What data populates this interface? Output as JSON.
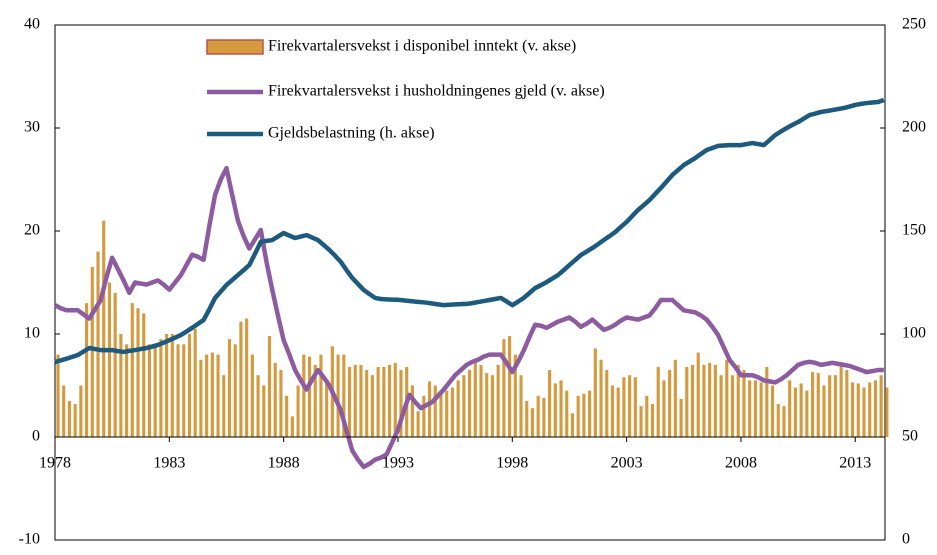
{
  "chart_data": {
    "type": "combo",
    "x": [
      1978,
      1978.25,
      1978.5,
      1978.75,
      1979,
      1979.25,
      1979.5,
      1979.75,
      1980,
      1980.25,
      1980.5,
      1980.75,
      1981,
      1981.25,
      1981.5,
      1981.75,
      1982,
      1982.25,
      1982.5,
      1982.75,
      1983,
      1983.25,
      1983.5,
      1983.75,
      1984,
      1984.25,
      1984.5,
      1984.75,
      1985,
      1985.25,
      1985.5,
      1985.75,
      1986,
      1986.25,
      1986.5,
      1986.75,
      1987,
      1987.25,
      1987.5,
      1987.75,
      1988,
      1988.25,
      1988.5,
      1988.75,
      1989,
      1989.25,
      1989.5,
      1989.75,
      1990,
      1990.25,
      1990.5,
      1990.75,
      1991,
      1991.25,
      1991.5,
      1991.75,
      1992,
      1992.25,
      1992.5,
      1992.75,
      1993,
      1993.25,
      1993.5,
      1993.75,
      1994,
      1994.25,
      1994.5,
      1994.75,
      1995,
      1995.25,
      1995.5,
      1995.75,
      1996,
      1996.25,
      1996.5,
      1996.75,
      1997,
      1997.25,
      1997.5,
      1997.75,
      1998,
      1998.25,
      1998.5,
      1998.75,
      1999,
      1999.25,
      1999.5,
      1999.75,
      2000,
      2000.25,
      2000.5,
      2000.75,
      2001,
      2001.25,
      2001.5,
      2001.75,
      2002,
      2002.25,
      2002.5,
      2002.75,
      2003,
      2003.25,
      2003.5,
      2003.75,
      2004,
      2004.25,
      2004.5,
      2004.75,
      2005,
      2005.25,
      2005.5,
      2005.75,
      2006,
      2006.25,
      2006.5,
      2006.75,
      2007,
      2007.25,
      2007.5,
      2007.75,
      2008,
      2008.25,
      2008.5,
      2008.75,
      2009,
      2009.25,
      2009.5,
      2009.75,
      2010,
      2010.25,
      2010.5,
      2010.75,
      2011,
      2011.25,
      2011.5,
      2011.75,
      2012,
      2012.25,
      2012.5,
      2012.75,
      2013,
      2013.25,
      2013.5,
      2013.75,
      2014,
      2014.25
    ],
    "series": [
      {
        "name": "Firekvartalersvekst i disponibel inntekt (v. akse)",
        "type": "bar",
        "axis": "y",
        "color": "#d69a3e",
        "values": [
          8,
          5,
          3.5,
          3.2,
          5,
          13,
          16.5,
          18,
          21,
          15,
          14,
          10,
          9,
          13,
          12.5,
          12,
          9,
          9,
          9.5,
          10,
          10,
          9,
          9,
          10,
          10.5,
          7.5,
          8,
          8.2,
          8,
          6,
          9.5,
          9,
          11.2,
          11.5,
          8,
          6,
          5,
          9.8,
          7.2,
          6.5,
          4,
          2,
          5,
          8,
          7.8,
          7,
          8,
          5.5,
          8.8,
          8,
          8,
          6.8,
          7,
          7,
          6.5,
          6,
          6.8,
          6.8,
          7,
          7.2,
          6.5,
          6.8,
          5,
          2.5,
          4,
          5.4,
          5,
          4.5,
          4.5,
          4.8,
          5.5,
          6,
          6.5,
          7.5,
          7,
          6.2,
          6,
          7,
          9.5,
          9.8,
          8,
          6,
          3.5,
          2.8,
          4,
          3.8,
          6.5,
          5.2,
          5.5,
          4.5,
          2.3,
          4,
          4.2,
          4.5,
          8.6,
          7.5,
          6.5,
          5,
          4.8,
          5.8,
          6,
          5.8,
          3,
          4,
          3.2,
          6.8,
          5.5,
          6.5,
          7.5,
          3.7,
          6.8,
          7,
          8.2,
          7,
          7.2,
          7,
          6,
          7.5,
          6,
          7,
          6.5,
          5.5,
          5.5,
          5.3,
          6.8,
          5,
          3.2,
          3,
          5.5,
          4.8,
          5.2,
          4.5,
          6.3,
          6.2,
          5,
          6,
          6,
          7.2,
          6.5,
          5.3,
          5.2,
          4.8,
          5.3,
          5.5,
          6,
          4.8
        ]
      },
      {
        "name": "Firekvartalersvekst i husholdningenes gjeld (v. akse)",
        "type": "line",
        "axis": "y",
        "color": "#8d5ba0",
        "values": [
          12.8,
          12.5,
          12.3,
          12.3,
          12.3,
          11.9,
          11.5,
          12.4,
          13.3,
          15.5,
          17.4,
          16.3,
          15.2,
          14,
          15,
          14.9,
          14.8,
          15,
          15.2,
          14.8,
          14.3,
          15,
          15.7,
          16.7,
          17.7,
          17.5,
          17.2,
          20.5,
          23.5,
          25,
          26.1,
          23.5,
          21,
          19.5,
          18.3,
          19.2,
          20.1,
          17,
          14.3,
          11.8,
          9.4,
          8,
          6.5,
          5.5,
          4.6,
          5.6,
          6.5,
          5.8,
          5,
          3.8,
          2.6,
          0.6,
          -1.3,
          -2.2,
          -2.9,
          -2.6,
          -2.2,
          -2,
          -1.7,
          -0.5,
          0.7,
          2.5,
          4.1,
          3.4,
          2.8,
          3.1,
          3.4,
          4,
          4.6,
          5.3,
          6,
          6.5,
          7,
          7.3,
          7.5,
          7.8,
          8,
          8,
          8,
          7.2,
          6.3,
          7.3,
          8.4,
          9.7,
          10.9,
          10.8,
          10.6,
          10.9,
          11.2,
          11.4,
          11.6,
          11.2,
          10.7,
          11,
          11.4,
          10.9,
          10.4,
          10.6,
          10.9,
          11.3,
          11.6,
          11.5,
          11.4,
          11.6,
          11.8,
          12.5,
          13.3,
          13.3,
          13.3,
          12.8,
          12.3,
          12.2,
          12.1,
          11.8,
          11.4,
          10.7,
          9.9,
          8.7,
          7.5,
          6.8,
          6,
          6,
          6,
          5.8,
          5.5,
          5.4,
          5.3,
          5.6,
          6,
          6.5,
          7,
          7.2,
          7.3,
          7.2,
          7,
          7.1,
          7.2,
          7.1,
          7,
          6.9,
          6.7,
          6.5,
          6.3,
          6.4,
          6.5,
          6.5
        ]
      },
      {
        "name": "Gjeldsbelastning (h. akse)",
        "type": "line",
        "axis": "y2",
        "color": "#1c5a7e",
        "values": [
          86.4,
          87.2,
          88,
          88.9,
          89.8,
          91.5,
          93.2,
          92.7,
          92.2,
          92.2,
          92.2,
          91.7,
          91.3,
          91.8,
          92.2,
          92.7,
          93.2,
          93.9,
          94.7,
          95.8,
          97,
          98.2,
          99.5,
          101.2,
          103,
          104.9,
          106.8,
          112,
          117.5,
          120.6,
          123.8,
          126.2,
          128.6,
          131,
          133.5,
          139,
          144.7,
          145.2,
          145.6,
          147.3,
          149,
          147.8,
          146.6,
          147.3,
          148,
          146.8,
          145.6,
          143.2,
          140.8,
          138,
          135,
          131,
          127.2,
          124.3,
          121.4,
          119.4,
          117.5,
          117,
          116.8,
          116.7,
          116.6,
          116.3,
          116,
          115.7,
          115.5,
          115.2,
          114.8,
          114.4,
          114,
          114.2,
          114.4,
          114.5,
          114.6,
          115,
          115.5,
          116,
          116.5,
          117,
          117.5,
          115.8,
          114,
          115.7,
          117.5,
          119.9,
          122.3,
          123.7,
          125.2,
          126.9,
          128.6,
          131,
          133.5,
          135.9,
          138.3,
          140,
          141.7,
          143.6,
          145.6,
          147.5,
          149.5,
          152,
          154.4,
          157.3,
          160.2,
          162.6,
          165,
          168,
          170.9,
          174,
          177.2,
          179.6,
          182,
          183.7,
          185.4,
          187.4,
          189.3,
          190.3,
          191.3,
          191.5,
          191.7,
          191.7,
          191.7,
          192.2,
          192.7,
          192.2,
          191.7,
          194.1,
          196.6,
          198.3,
          200,
          201.5,
          202.9,
          204.6,
          206.3,
          207,
          207.8,
          208.2,
          208.7,
          209.2,
          209.7,
          210.4,
          211.2,
          211.7,
          212.1,
          212.4,
          212.6,
          213.6
        ]
      }
    ],
    "xlim": [
      1978,
      2014.3
    ],
    "xticks": [
      1978,
      1983,
      1988,
      1993,
      1998,
      2003,
      2008,
      2013
    ],
    "ylim": [
      -10,
      40
    ],
    "yticks": [
      -10,
      0,
      10,
      20,
      30,
      40
    ],
    "y2lim": [
      0,
      250
    ],
    "y2ticks": [
      0,
      50,
      100,
      150,
      200,
      250
    ],
    "legend": "top-center"
  }
}
